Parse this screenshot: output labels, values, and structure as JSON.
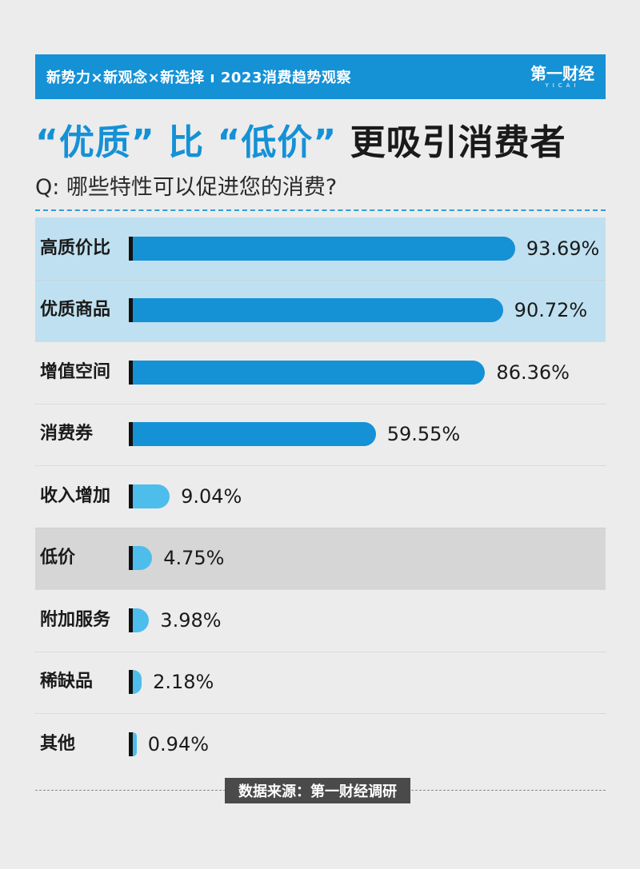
{
  "banner": {
    "text": "新势力×新观念×新选择 ı 2023消费趋势观察",
    "logo": "第一财经",
    "logo_sub": "YICAI"
  },
  "title": {
    "part1": "“优质”",
    "part2": "比",
    "part3": "“低价”",
    "part4": "更吸引消费者"
  },
  "question": "Q: 哪些特性可以促进您的消费?",
  "source": "数据来源：第一财经调研",
  "colors": {
    "accent": "#1591d6",
    "highlight_bg": "#bfe0f0",
    "gray_bg": "#d6d6d6"
  },
  "chart_data": {
    "type": "bar",
    "orientation": "horizontal",
    "categories": [
      "高质价比",
      "优质商品",
      "增值空间",
      "消费券",
      "收入增加",
      "低价",
      "附加服务",
      "稀缺品",
      "其他"
    ],
    "values": [
      93.69,
      90.72,
      86.36,
      59.55,
      9.04,
      4.75,
      3.98,
      2.18,
      0.94
    ],
    "value_labels": [
      "93.69%",
      "90.72%",
      "86.36%",
      "59.55%",
      "9.04%",
      "4.75%",
      "3.98%",
      "2.18%",
      "0.94%"
    ],
    "unit": "%",
    "xlim": [
      0,
      100
    ],
    "highlighted": [
      "高质价比",
      "优质商品"
    ],
    "gray_highlighted": [
      "低价"
    ]
  }
}
